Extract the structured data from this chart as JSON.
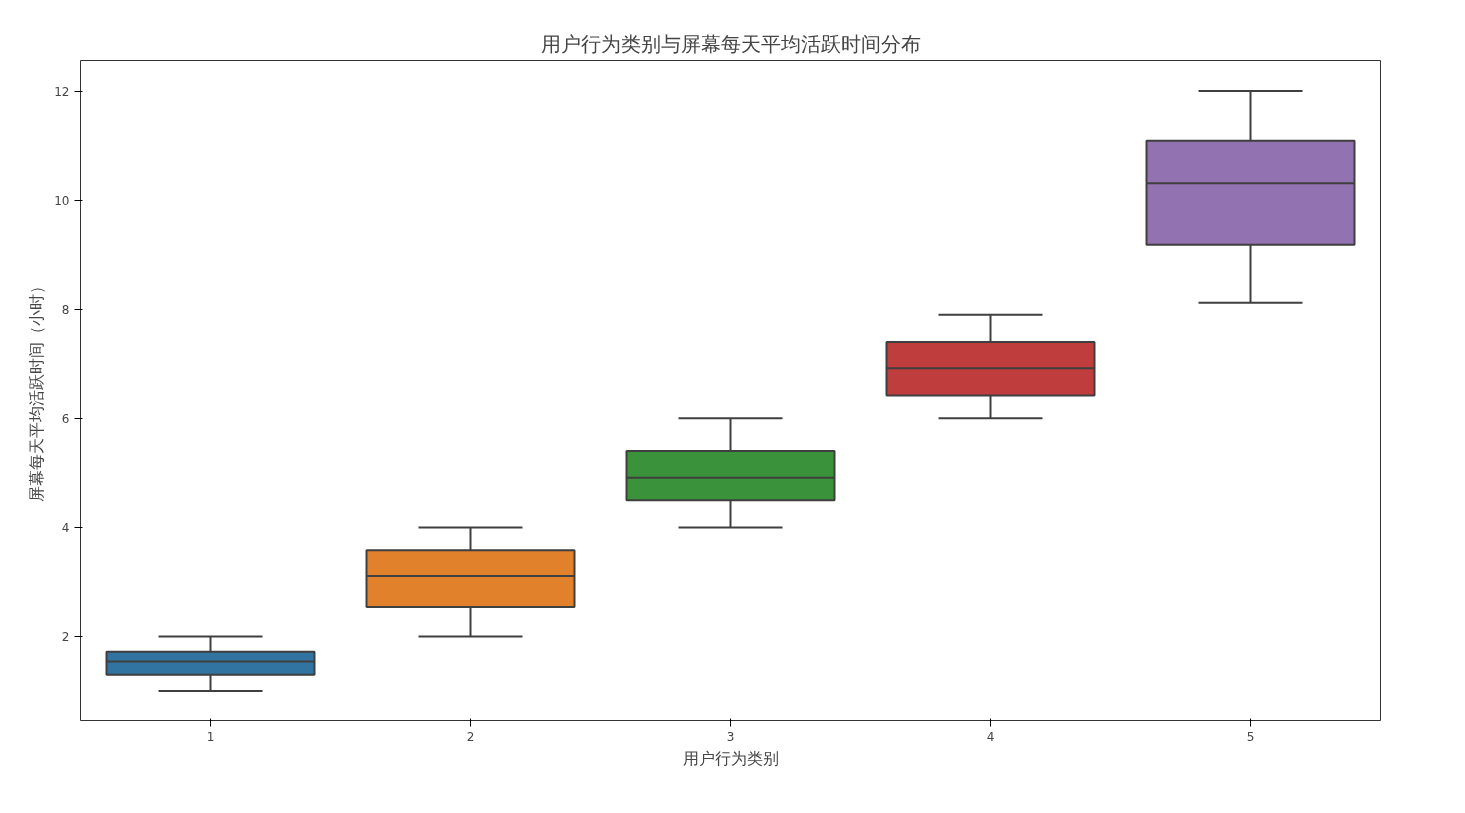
{
  "chart_data": {
    "type": "box",
    "title": "用户行为类别与屏幕每天平均活跃时间分布",
    "xlabel": "用户行为类别",
    "ylabel": "屏幕每天平均活跃时间（小时）",
    "categories": [
      "1",
      "2",
      "3",
      "4",
      "5"
    ],
    "colors": [
      "#3274a1",
      "#e1812c",
      "#3a923a",
      "#c03d3e",
      "#9372b2"
    ],
    "boxes": [
      {
        "low": 1.0,
        "q1": 1.3,
        "median": 1.54,
        "q3": 1.72,
        "high": 2.0
      },
      {
        "low": 2.0,
        "q1": 2.54,
        "median": 3.11,
        "q3": 3.58,
        "high": 4.0
      },
      {
        "low": 4.0,
        "q1": 4.5,
        "median": 4.91,
        "q3": 5.4,
        "high": 6.0
      },
      {
        "low": 6.0,
        "q1": 6.42,
        "median": 6.92,
        "q3": 7.4,
        "high": 7.9
      },
      {
        "low": 8.12,
        "q1": 9.18,
        "median": 10.31,
        "q3": 11.09,
        "high": 12.0
      }
    ],
    "ylim": [
      0.46,
      12.56
    ],
    "yticks": [
      2,
      4,
      6,
      8,
      10,
      12
    ],
    "grid": false
  }
}
